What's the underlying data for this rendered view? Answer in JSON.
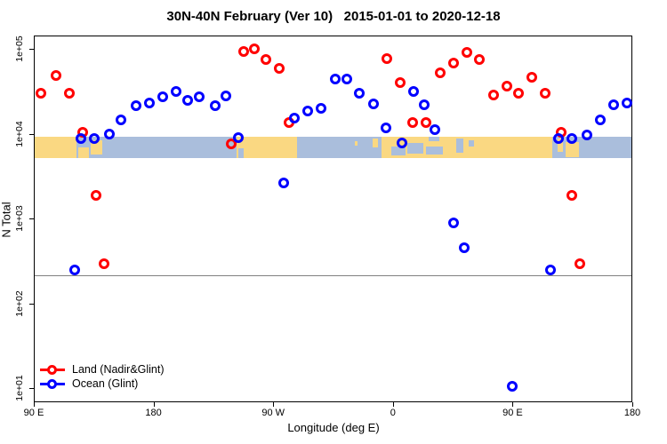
{
  "title": "30N-40N February (Ver 10)   2015-01-01 to 2020-12-18",
  "colors": {
    "land_series": "#FF0000",
    "ocean_series": "#0000FF",
    "map_land": "#FAD882",
    "map_ocean": "#AABEDC",
    "threshold_line": "#808080",
    "frame": "#000000"
  },
  "legend": {
    "items": [
      {
        "label": "Land (Nadir&Glint)",
        "color": "#FF0000"
      },
      {
        "label": "Ocean (Glint)",
        "color": "#0000FF"
      }
    ]
  },
  "chart_data": {
    "type": "scatter",
    "title": "30N-40N February (Ver 10)   2015-01-01 to 2020-12-18",
    "xlabel": "Longitude (deg E)",
    "ylabel": "N Total",
    "x_axis": {
      "note": "longitude in deg E increasing eastward from 90E; axis wraps 90E>180>90W>0>90E>180",
      "range": [
        90,
        540
      ],
      "ticks": [
        {
          "pos": 90,
          "label": "90 E"
        },
        {
          "pos": 180,
          "label": "180"
        },
        {
          "pos": 270,
          "label": "90 W"
        },
        {
          "pos": 360,
          "label": "0"
        },
        {
          "pos": 450,
          "label": "90 E"
        },
        {
          "pos": 540,
          "label": "180"
        }
      ],
      "grid": false
    },
    "y_axis": {
      "scale": "log10",
      "range": [
        6.8,
        143000
      ],
      "ticks": [
        {
          "value": 10,
          "label": "1e+01"
        },
        {
          "value": 100,
          "label": "1e+02"
        },
        {
          "value": 1000,
          "label": "1e+03"
        },
        {
          "value": 10000,
          "label": "1e+04"
        },
        {
          "value": 100000,
          "label": "1e+05"
        }
      ],
      "grid": false
    },
    "threshold_line": {
      "n": 220,
      "color": "#808080"
    },
    "map_band": {
      "description": "30N-40N world-map strip drawn across the plot just below 1e+04",
      "n_top": 9400,
      "n_bottom": 5300,
      "land_color": "#FAD882",
      "ocean_color": "#AABEDC",
      "segments": [
        {
          "from": 90,
          "to": 121.5,
          "type": "land"
        },
        {
          "from": 121.5,
          "to": 242,
          "type": "ocean"
        },
        {
          "from": 242,
          "to": 287.5,
          "type": "land"
        },
        {
          "from": 287.5,
          "to": 351,
          "type": "ocean"
        },
        {
          "from": 351,
          "to": 479,
          "type": "land"
        },
        {
          "from": 479,
          "to": 540,
          "type": "ocean"
        }
      ],
      "overlays": [
        {
          "from": 123,
          "to": 131,
          "top": 0.5,
          "bottom": 1.0,
          "type": "land"
        },
        {
          "from": 132,
          "to": 141,
          "top": 0.15,
          "bottom": 0.85,
          "type": "land"
        },
        {
          "from": 330.5,
          "to": 333,
          "top": 0.2,
          "bottom": 0.4,
          "type": "land"
        },
        {
          "from": 344,
          "to": 348,
          "top": 0.1,
          "bottom": 0.5,
          "type": "land"
        },
        {
          "from": 483,
          "to": 487,
          "top": 0.1,
          "bottom": 0.7,
          "type": "land"
        },
        {
          "from": 489,
          "to": 499,
          "top": 0.25,
          "bottom": 0.95,
          "type": "land"
        },
        {
          "from": 243,
          "to": 247,
          "top": 0.55,
          "bottom": 1.0,
          "type": "ocean"
        },
        {
          "from": 358,
          "to": 369,
          "top": 0.45,
          "bottom": 0.9,
          "type": "ocean"
        },
        {
          "from": 370,
          "to": 382,
          "top": 0.3,
          "bottom": 0.78,
          "type": "ocean"
        },
        {
          "from": 384,
          "to": 397,
          "top": 0.45,
          "bottom": 0.85,
          "type": "ocean"
        },
        {
          "from": 386,
          "to": 394,
          "top": 0.0,
          "bottom": 0.2,
          "type": "ocean"
        },
        {
          "from": 407,
          "to": 412,
          "top": 0.1,
          "bottom": 0.75,
          "type": "ocean"
        },
        {
          "from": 416,
          "to": 420,
          "top": 0.15,
          "bottom": 0.45,
          "type": "ocean"
        }
      ]
    },
    "series": [
      {
        "name": "Land (Nadir&Glint)",
        "color": "#FF0000",
        "marker": "open-circle",
        "points": [
          [
            95,
            31000
          ],
          [
            106,
            50000
          ],
          [
            116,
            31000
          ],
          [
            126,
            10600
          ],
          [
            136,
            1900
          ],
          [
            142,
            300
          ],
          [
            238,
            7800
          ],
          [
            247,
            95000
          ],
          [
            255,
            102000
          ],
          [
            264,
            77000
          ],
          [
            274,
            60000
          ],
          [
            281,
            14000
          ],
          [
            355,
            79000
          ],
          [
            365,
            41000
          ],
          [
            374,
            14000
          ],
          [
            384,
            14000
          ],
          [
            395,
            53000
          ],
          [
            405,
            70000
          ],
          [
            415,
            93000
          ],
          [
            424,
            77000
          ],
          [
            435,
            29000
          ],
          [
            445,
            37000
          ],
          [
            454,
            31000
          ],
          [
            464,
            47000
          ],
          [
            474,
            31000
          ],
          [
            486,
            10600
          ],
          [
            494,
            1900
          ],
          [
            500,
            300
          ]
        ]
      },
      {
        "name": "Ocean (Glint)",
        "color": "#0000FF",
        "marker": "open-circle",
        "points": [
          [
            120,
            250
          ],
          [
            125,
            9000
          ],
          [
            135,
            9000
          ],
          [
            146,
            10100
          ],
          [
            155,
            15000
          ],
          [
            166,
            22000
          ],
          [
            176,
            23500
          ],
          [
            186,
            28000
          ],
          [
            196,
            32000
          ],
          [
            205,
            25000
          ],
          [
            214,
            28000
          ],
          [
            226,
            22000
          ],
          [
            234,
            28500
          ],
          [
            243,
            9200
          ],
          [
            277,
            2700
          ],
          [
            285,
            15600
          ],
          [
            295,
            19000
          ],
          [
            305,
            20400
          ],
          [
            316,
            45000
          ],
          [
            325,
            45000
          ],
          [
            334,
            31000
          ],
          [
            345,
            23000
          ],
          [
            354,
            12000
          ],
          [
            366,
            7900
          ],
          [
            375,
            32000
          ],
          [
            383,
            22500
          ],
          [
            391,
            11400
          ],
          [
            405,
            910
          ],
          [
            413,
            460
          ],
          [
            449,
            10.7
          ],
          [
            478,
            250
          ],
          [
            484,
            9000
          ],
          [
            494,
            9000
          ],
          [
            505,
            9900
          ],
          [
            515,
            15000
          ],
          [
            525,
            22400
          ],
          [
            535,
            23500
          ]
        ]
      }
    ]
  }
}
